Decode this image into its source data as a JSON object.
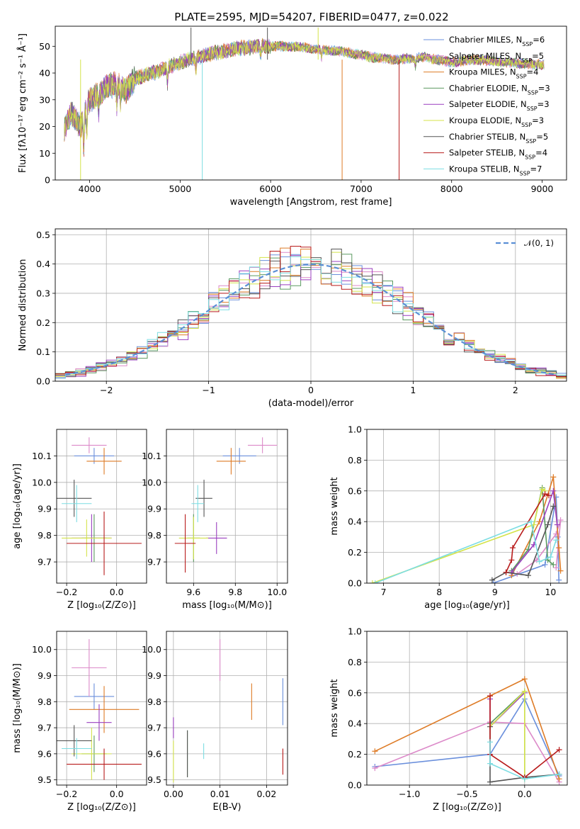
{
  "title": "PLATE=2595, MJD=54207, FIBERID=0477, z=0.022",
  "colors": [
    "#6a8fdc",
    "#dc8ac9",
    "#de7b26",
    "#5b9a60",
    "#9a3fbf",
    "#d4e34a",
    "#555555",
    "#b81b1b",
    "#7cdde2"
  ],
  "chart_data": [
    {
      "type": "line",
      "panel": "spectrum",
      "xlabel": "wavelength [Angstrom, rest frame]",
      "ylabel": "Flux [fλ10⁻¹⁷ erg cm⁻² s⁻¹ Å⁻¹]",
      "xlim": [
        3620,
        9270
      ],
      "ylim": [
        0,
        57.5
      ],
      "xticks": [
        4000,
        5000,
        6000,
        7000,
        8000,
        9000
      ],
      "yticks": [
        0,
        10,
        20,
        30,
        40,
        50
      ],
      "grid": false,
      "legend_position": "top-right",
      "x": [
        3700,
        3800,
        3900,
        4000,
        4100,
        4200,
        4300,
        4400,
        4500,
        4700,
        5000,
        5300,
        5600,
        5900,
        6200,
        6500,
        6800,
        7100,
        7400,
        7700,
        8000,
        8300,
        8600,
        9000
      ],
      "series": [
        {
          "name": "Chabrier MILES, NSSP=6",
          "values": [
            18,
            25,
            20,
            30,
            32,
            35,
            36,
            33,
            38,
            40,
            44,
            47,
            49,
            50,
            50,
            49,
            48,
            46,
            45,
            46,
            44,
            45,
            44,
            43
          ]
        },
        {
          "name": "Salpeter MILES, NSSP=5",
          "values": [
            18,
            25,
            20,
            30,
            32,
            35,
            36,
            33,
            38,
            40,
            44,
            47,
            49,
            50,
            50,
            49,
            48,
            46,
            45,
            46,
            44,
            45,
            44,
            43
          ]
        },
        {
          "name": "Kroupa MILES, NSSP=4",
          "values": [
            18,
            25,
            20,
            30,
            32,
            35,
            36,
            33,
            38,
            40,
            44,
            47,
            49,
            50,
            50,
            49,
            48,
            46,
            45,
            46,
            44,
            45,
            44,
            43
          ]
        },
        {
          "name": "Chabrier ELODIE, NSSP=3",
          "values": [
            18,
            25,
            20,
            30,
            32,
            35,
            36,
            33,
            38,
            40,
            44,
            47,
            49,
            50,
            50,
            49,
            48,
            46,
            45,
            46,
            44,
            45,
            44,
            43
          ]
        },
        {
          "name": "Salpeter ELODIE, NSSP=3",
          "values": [
            18,
            25,
            20,
            30,
            32,
            35,
            36,
            33,
            38,
            40,
            44,
            47,
            49,
            50,
            50,
            49,
            48,
            46,
            45,
            46,
            44,
            45,
            44,
            43
          ]
        },
        {
          "name": "Kroupa ELODIE, NSSP=3",
          "values": [
            18,
            25,
            20,
            30,
            32,
            35,
            36,
            33,
            38,
            40,
            44,
            47,
            49,
            50,
            50,
            49,
            48,
            46,
            45,
            46,
            44,
            45,
            44,
            43
          ]
        },
        {
          "name": "Chabrier STELIB, NSSP=5",
          "values": [
            18,
            25,
            20,
            30,
            32,
            35,
            36,
            33,
            38,
            40,
            44,
            47,
            49,
            50,
            50,
            49,
            48,
            46,
            45,
            46,
            44,
            45,
            44,
            43
          ]
        },
        {
          "name": "Salpeter STELIB, NSSP=4",
          "values": [
            18,
            25,
            20,
            30,
            32,
            35,
            36,
            33,
            38,
            40,
            44,
            47,
            49,
            50,
            50,
            49,
            48,
            46,
            45,
            46,
            44,
            45,
            44,
            43
          ]
        },
        {
          "name": "Kroupa STELIB, NSSP=7",
          "values": [
            18,
            25,
            20,
            30,
            32,
            35,
            36,
            33,
            38,
            40,
            44,
            47,
            49,
            50,
            50,
            49,
            48,
            46,
            45,
            46,
            44,
            45,
            44,
            43
          ]
        }
      ]
    },
    {
      "type": "histogram",
      "panel": "residuals",
      "xlabel": "(data-model)/error",
      "ylabel": "Normed distribution",
      "xlim": [
        -2.5,
        2.5
      ],
      "ylim": [
        0,
        0.52
      ],
      "xticks": [
        -2,
        -1,
        0,
        1,
        2
      ],
      "yticks": [
        0.0,
        0.1,
        0.2,
        0.3,
        0.4,
        0.5
      ],
      "grid": true,
      "legend_position": "top-right",
      "reference_curve": {
        "name": "𝒩(0, 1)",
        "mean": 0,
        "sigma": 1
      },
      "bin_width": 0.1
    },
    {
      "type": "errorbar",
      "panel": "age-vs-Z",
      "xlabel": "Z [log₁₀(Z/Z⊙)]",
      "ylabel": "age  [log₁₀(age/yr)]",
      "xlim": [
        -0.24,
        0.12
      ],
      "ylim": [
        9.62,
        10.2
      ],
      "xticks": [
        -0.2,
        0.0
      ],
      "yticks": [
        9.7,
        9.8,
        9.9,
        10.0,
        10.1
      ],
      "grid": true,
      "points": [
        {
          "x": -0.09,
          "y": 10.1,
          "xerr": 0.08,
          "yerr": 0.03
        },
        {
          "x": -0.11,
          "y": 10.14,
          "xerr": 0.07,
          "yerr": 0.03
        },
        {
          "x": -0.05,
          "y": 10.08,
          "xerr": 0.07,
          "yerr": 0.05
        },
        {
          "x": -0.09,
          "y": 9.79,
          "xerr": 0.05,
          "yerr": 0.09
        },
        {
          "x": -0.1,
          "y": 9.79,
          "xerr": 0.08,
          "yerr": 0.09
        },
        {
          "x": -0.12,
          "y": 9.79,
          "xerr": 0.1,
          "yerr": 0.07
        },
        {
          "x": -0.17,
          "y": 9.94,
          "xerr": 0.07,
          "yerr": 0.07
        },
        {
          "x": -0.05,
          "y": 9.77,
          "xerr": 0.15,
          "yerr": 0.12
        },
        {
          "x": -0.16,
          "y": 9.92,
          "xerr": 0.06,
          "yerr": 0.07
        }
      ]
    },
    {
      "type": "errorbar",
      "panel": "age-vs-mass",
      "xlabel": "mass [log₁₀(M/M⊙)]",
      "ylabel": "",
      "xlim": [
        9.47,
        10.05
      ],
      "ylim": [
        9.62,
        10.2
      ],
      "xticks": [
        9.6,
        9.8,
        10.0
      ],
      "yticks": [
        9.7,
        9.8,
        9.9,
        10.0,
        10.1
      ],
      "grid": true,
      "points": [
        {
          "x": 9.82,
          "y": 10.1,
          "xerr": 0.08,
          "yerr": 0.03
        },
        {
          "x": 9.93,
          "y": 10.14,
          "xerr": 0.07,
          "yerr": 0.03
        },
        {
          "x": 9.78,
          "y": 10.08,
          "xerr": 0.07,
          "yerr": 0.05
        },
        {
          "x": 9.6,
          "y": 9.79,
          "xerr": 0.03,
          "yerr": 0.09
        },
        {
          "x": 9.71,
          "y": 9.79,
          "xerr": 0.05,
          "yerr": 0.06
        },
        {
          "x": 9.6,
          "y": 9.79,
          "xerr": 0.07,
          "yerr": 0.08
        },
        {
          "x": 9.65,
          "y": 9.94,
          "xerr": 0.04,
          "yerr": 0.07
        },
        {
          "x": 9.56,
          "y": 9.77,
          "xerr": 0.05,
          "yerr": 0.11
        },
        {
          "x": 9.62,
          "y": 9.92,
          "xerr": 0.03,
          "yerr": 0.07
        }
      ]
    },
    {
      "type": "line",
      "panel": "mass-weight-vs-age",
      "xlabel": "age  [log₁₀(age/yr)]",
      "ylabel": "mass weight",
      "xlim": [
        6.7,
        10.3
      ],
      "ylim": [
        0,
        1.0
      ],
      "xticks": [
        7,
        8,
        9,
        10
      ],
      "yticks": [
        0.0,
        0.2,
        0.4,
        0.6,
        0.8,
        1.0
      ],
      "grid": true,
      "series": [
        {
          "x": [
            8.97,
            9.9,
            10.1,
            10.13,
            10.15
          ],
          "values": [
            0.0,
            0.12,
            0.56,
            0.3,
            0.02
          ]
        },
        {
          "x": [
            9.4,
            9.75,
            10.1,
            10.18,
            10.1
          ],
          "values": [
            0.06,
            0.15,
            0.32,
            0.41,
            0.1
          ]
        },
        {
          "x": [
            9.3,
            9.8,
            10.05,
            10.15,
            10.18
          ],
          "values": [
            0.05,
            0.4,
            0.69,
            0.23,
            0.08
          ]
        },
        {
          "x": [
            9.3,
            9.6,
            9.85,
            9.95,
            10.05
          ],
          "values": [
            0.08,
            0.22,
            0.62,
            0.15,
            0.12
          ]
        },
        {
          "x": [
            9.3,
            9.7,
            10.05,
            10.12
          ],
          "values": [
            0.07,
            0.25,
            0.6,
            0.38
          ]
        },
        {
          "x": [
            6.8,
            9.7,
            9.85,
            9.9
          ],
          "values": [
            0.0,
            0.38,
            0.61,
            0.6
          ]
        },
        {
          "x": [
            8.95,
            9.2,
            9.6,
            9.95,
            10.05
          ],
          "values": [
            0.02,
            0.07,
            0.05,
            0.38,
            0.5
          ]
        },
        {
          "x": [
            9.2,
            9.3,
            9.32,
            9.9,
            9.97
          ],
          "values": [
            0.07,
            0.15,
            0.23,
            0.58,
            0.57
          ]
        },
        {
          "x": [
            6.85,
            9.65,
            9.8,
            10.0,
            10.1
          ],
          "values": [
            0.0,
            0.4,
            0.14,
            0.17,
            0.28
          ]
        }
      ]
    },
    {
      "type": "errorbar",
      "panel": "mass-vs-Z",
      "xlabel": "Z [log₁₀(Z/Z⊙)]",
      "ylabel": "mass [log₁₀(M/M⊙)]",
      "xlim": [
        -0.24,
        0.12
      ],
      "ylim": [
        9.48,
        10.07
      ],
      "xticks": [
        -0.2,
        0.0
      ],
      "yticks": [
        9.5,
        9.6,
        9.7,
        9.8,
        9.9,
        10.0
      ],
      "grid": true,
      "points": [
        {
          "x": -0.09,
          "y": 9.82,
          "xerr": 0.08,
          "yerr": 0.05
        },
        {
          "x": -0.11,
          "y": 9.93,
          "xerr": 0.07,
          "yerr": 0.11
        },
        {
          "x": -0.05,
          "y": 9.77,
          "xerr": 0.14,
          "yerr": 0.09
        },
        {
          "x": -0.09,
          "y": 9.6,
          "xerr": 0.05,
          "yerr": 0.07
        },
        {
          "x": -0.07,
          "y": 9.72,
          "xerr": 0.05,
          "yerr": 0.07
        },
        {
          "x": -0.1,
          "y": 9.6,
          "xerr": 0.08,
          "yerr": 0.1
        },
        {
          "x": -0.17,
          "y": 9.65,
          "xerr": 0.07,
          "yerr": 0.06
        },
        {
          "x": -0.05,
          "y": 9.56,
          "xerr": 0.15,
          "yerr": 0.06
        },
        {
          "x": -0.16,
          "y": 9.62,
          "xerr": 0.06,
          "yerr": 0.04
        }
      ]
    },
    {
      "type": "errorbar",
      "panel": "mass-vs-EBV",
      "xlabel": "E(B-V)",
      "ylabel": "",
      "xlim": [
        -0.0015,
        0.0245
      ],
      "ylim": [
        9.48,
        10.07
      ],
      "xticks": [
        0.0,
        0.01,
        0.02
      ],
      "yticks": [
        9.5,
        9.6,
        9.7,
        9.8,
        9.9,
        10.0
      ],
      "grid": true,
      "points": [
        {
          "x": 0.0235,
          "y": 9.8,
          "xerr": 0,
          "yerr": 0.09
        },
        {
          "x": 0.01,
          "y": 9.96,
          "xerr": 0,
          "yerr": 0.08
        },
        {
          "x": 0.0168,
          "y": 9.8,
          "xerr": 0,
          "yerr": 0.07
        },
        {
          "x": 0.003,
          "y": 9.6,
          "xerr": 0,
          "yerr": 0.09
        },
        {
          "x": 0.0,
          "y": 9.7,
          "xerr": 0,
          "yerr": 0.04
        },
        {
          "x": 0.0,
          "y": 9.57,
          "xerr": 0,
          "yerr": 0.08
        },
        {
          "x": 0.003,
          "y": 9.6,
          "xerr": 0,
          "yerr": 0.09
        },
        {
          "x": 0.0235,
          "y": 9.57,
          "xerr": 0,
          "yerr": 0.05
        },
        {
          "x": 0.0065,
          "y": 9.61,
          "xerr": 0,
          "yerr": 0.03
        }
      ]
    },
    {
      "type": "line",
      "panel": "mass-weight-vs-Z",
      "xlabel": "Z [log₁₀(Z/Z⊙)]",
      "ylabel": "mass weight",
      "xlim": [
        -1.37,
        0.37
      ],
      "ylim": [
        0,
        1.0
      ],
      "xticks": [
        -1.0,
        -0.5,
        0.0
      ],
      "yticks": [
        0.0,
        0.2,
        0.4,
        0.6,
        0.8,
        1.0
      ],
      "grid": true,
      "series": [
        {
          "x": [
            -1.3,
            -0.3,
            0.0,
            0.3
          ],
          "values": [
            0.12,
            0.2,
            0.56,
            0.06
          ]
        },
        {
          "x": [
            -1.3,
            -0.3,
            0.0,
            0.3
          ],
          "values": [
            0.11,
            0.41,
            0.4,
            0.02
          ]
        },
        {
          "x": [
            -1.3,
            -0.3,
            0.0,
            0.3
          ],
          "values": [
            0.22,
            0.58,
            0.69,
            0.04
          ]
        },
        {
          "x": [
            -0.3,
            0.0,
            0.0
          ],
          "values": [
            0.4,
            0.61,
            0.04
          ]
        },
        {
          "x": [
            -0.3,
            -0.3,
            0.0
          ],
          "values": [
            0.56,
            0.38,
            0.6
          ]
        },
        {
          "x": [
            -0.3,
            0.0,
            0.0
          ],
          "values": [
            0.38,
            0.61,
            0.04
          ]
        },
        {
          "x": [
            -0.3,
            -0.3,
            0.0,
            0.3
          ],
          "values": [
            0.38,
            0.02,
            0.05,
            0.07
          ]
        },
        {
          "x": [
            -0.3,
            -0.3,
            0.0,
            0.3
          ],
          "values": [
            0.58,
            0.2,
            0.05,
            0.23
          ]
        },
        {
          "x": [
            -0.3,
            -0.3,
            0.0,
            0.3
          ],
          "values": [
            0.28,
            0.14,
            0.04,
            0.07
          ]
        }
      ]
    }
  ]
}
